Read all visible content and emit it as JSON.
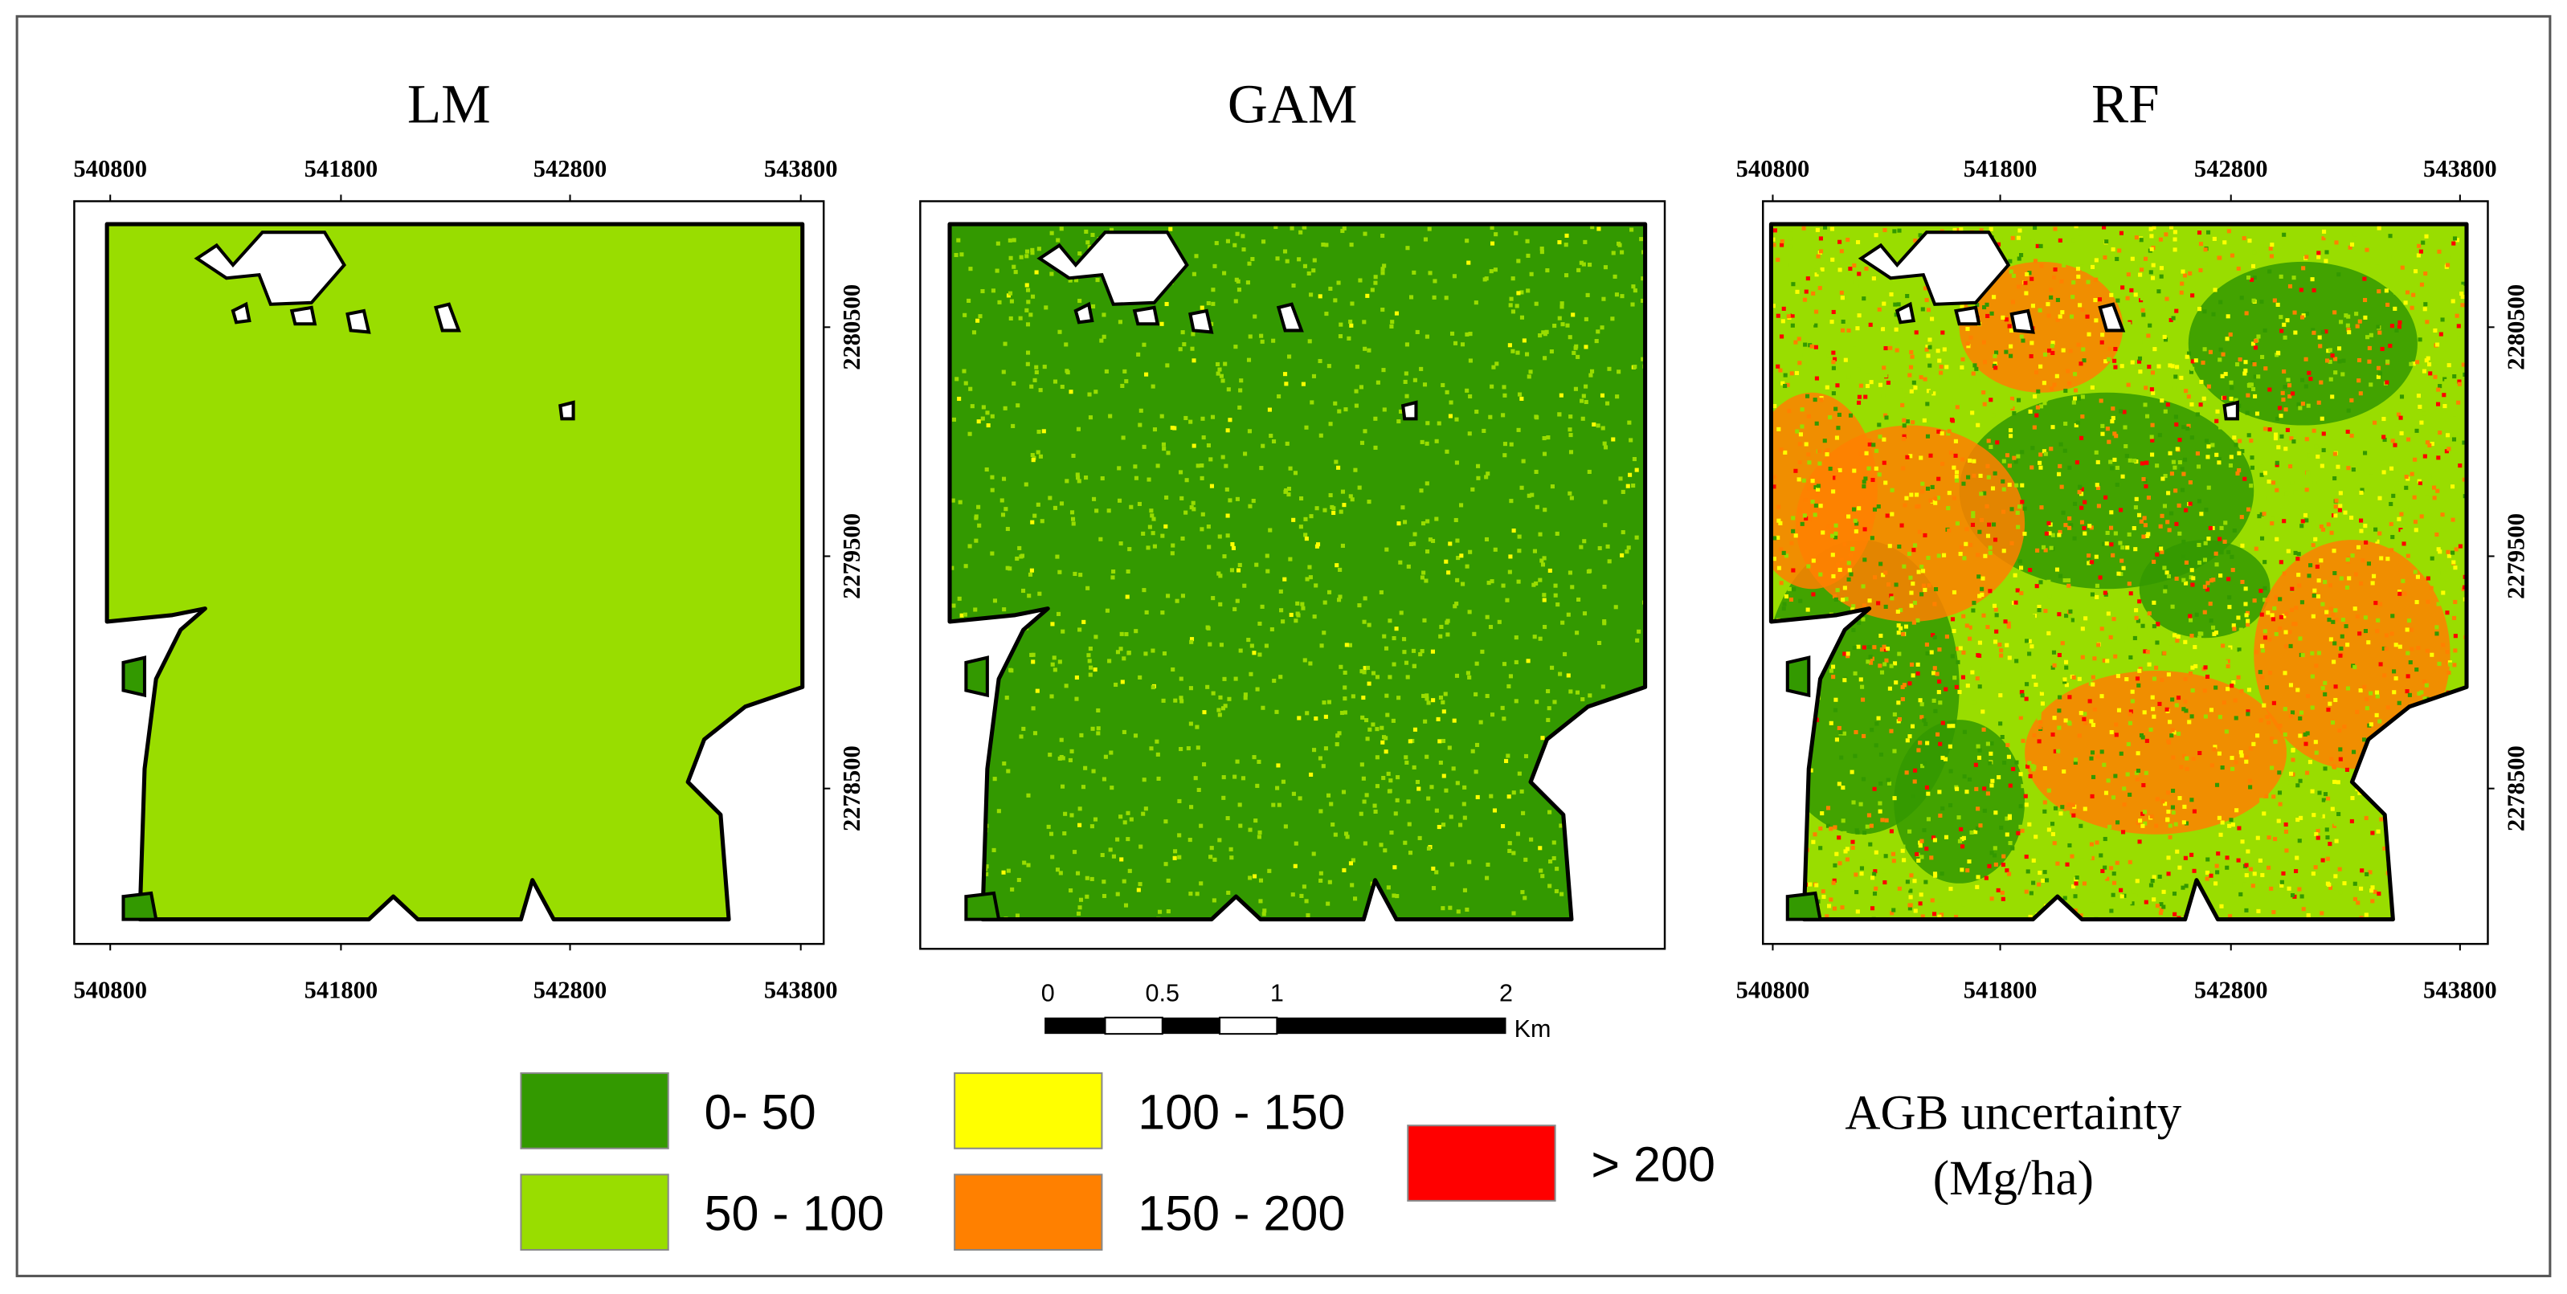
{
  "panels": [
    {
      "title": "LM",
      "xticks": [
        "540800",
        "541800",
        "542800",
        "543800"
      ],
      "yticks": [
        "2280500",
        "2279500",
        "2278500"
      ]
    },
    {
      "title": "GAM"
    },
    {
      "title": "RF",
      "xticks": [
        "540800",
        "541800",
        "542800",
        "543800"
      ],
      "yticks": [
        "2280500",
        "2279500",
        "2278500"
      ]
    }
  ],
  "scale_bar": {
    "labels": [
      "0",
      "0.5",
      "1",
      "2"
    ],
    "unit": "Km"
  },
  "legend": {
    "items": [
      {
        "label": "0- 50",
        "color": "#339900"
      },
      {
        "label": "50 - 100",
        "color": "#99dd00"
      },
      {
        "label": "100 - 150",
        "color": "#ffff00"
      },
      {
        "label": "150 - 200",
        "color": "#ff8000"
      },
      {
        "label": "> 200",
        "color": "#ff0000"
      }
    ],
    "title": [
      "AGB uncertainty",
      "(Mg/ha)"
    ]
  }
}
